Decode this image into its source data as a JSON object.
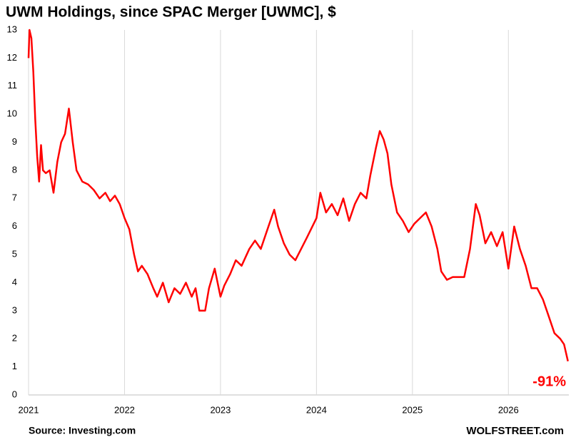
{
  "chart_data": {
    "type": "line",
    "title": "UWM Holdings, since SPAC Merger [UWMC], $",
    "annotation": "-91%",
    "source": "Source: Investing.com",
    "credit": "WOLFSTREET.com",
    "x": [
      2021.0,
      2021.01,
      2021.03,
      2021.05,
      2021.07,
      2021.09,
      2021.11,
      2021.13,
      2021.15,
      2021.18,
      2021.22,
      2021.26,
      2021.3,
      2021.34,
      2021.38,
      2021.42,
      2021.46,
      2021.5,
      2021.56,
      2021.62,
      2021.68,
      2021.74,
      2021.8,
      2021.85,
      2021.9,
      2021.95,
      2022.0,
      2022.05,
      2022.1,
      2022.14,
      2022.18,
      2022.24,
      2022.3,
      2022.34,
      2022.4,
      2022.46,
      2022.52,
      2022.58,
      2022.64,
      2022.7,
      2022.74,
      2022.78,
      2022.84,
      2022.88,
      2022.94,
      2023.0,
      2023.04,
      2023.1,
      2023.16,
      2023.22,
      2023.3,
      2023.36,
      2023.42,
      2023.5,
      2023.56,
      2023.6,
      2023.66,
      2023.72,
      2023.78,
      2023.84,
      2023.9,
      2024.0,
      2024.04,
      2024.1,
      2024.16,
      2024.22,
      2024.28,
      2024.34,
      2024.4,
      2024.46,
      2024.52,
      2024.56,
      2024.62,
      2024.66,
      2024.7,
      2024.74,
      2024.78,
      2024.84,
      2024.9,
      2024.96,
      2025.02,
      2025.08,
      2025.14,
      2025.2,
      2025.26,
      2025.3,
      2025.36,
      2025.42,
      2025.48,
      2025.54,
      2025.6,
      2025.66,
      2025.7,
      2025.76,
      2025.82,
      2025.88,
      2025.94,
      2026.0,
      2026.06,
      2026.12,
      2026.18,
      2026.24,
      2026.3,
      2026.36,
      2026.42,
      2026.48,
      2026.54,
      2026.58,
      2026.62
    ],
    "series": [
      {
        "name": "UWMC",
        "color": "#ff0000",
        "values": [
          12.0,
          13.0,
          12.7,
          11.5,
          9.8,
          8.5,
          7.6,
          8.9,
          8.0,
          7.9,
          8.0,
          7.2,
          8.3,
          9.0,
          9.3,
          10.2,
          9.0,
          8.0,
          7.6,
          7.5,
          7.3,
          7.0,
          7.2,
          6.9,
          7.1,
          6.8,
          6.3,
          5.9,
          5.0,
          4.4,
          4.6,
          4.3,
          3.8,
          3.5,
          4.0,
          3.3,
          3.8,
          3.6,
          4.0,
          3.5,
          3.8,
          3.0,
          3.0,
          3.8,
          4.5,
          3.5,
          3.9,
          4.3,
          4.8,
          4.6,
          5.2,
          5.5,
          5.2,
          6.0,
          6.6,
          6.0,
          5.4,
          5.0,
          4.8,
          5.2,
          5.6,
          6.3,
          7.2,
          6.5,
          6.8,
          6.4,
          7.0,
          6.2,
          6.8,
          7.2,
          7.0,
          7.8,
          8.8,
          9.4,
          9.1,
          8.6,
          7.5,
          6.5,
          6.2,
          5.8,
          6.1,
          6.3,
          6.5,
          6.0,
          5.2,
          4.4,
          4.1,
          4.2,
          4.2,
          4.2,
          5.2,
          6.8,
          6.4,
          5.4,
          5.8,
          5.3,
          5.8,
          4.5,
          6.0,
          5.2,
          4.6,
          3.8,
          3.8,
          3.4,
          2.8,
          2.2,
          2.0,
          1.8,
          1.2
        ]
      }
    ],
    "xlim": [
      2021,
      2026.63
    ],
    "xticks": [
      2021,
      2022,
      2023,
      2024,
      2025,
      2026
    ],
    "ylim": [
      0,
      13
    ],
    "yticks": [
      0,
      1,
      2,
      3,
      4,
      5,
      6,
      7,
      8,
      9,
      10,
      11,
      12,
      13
    ],
    "grid": true
  }
}
